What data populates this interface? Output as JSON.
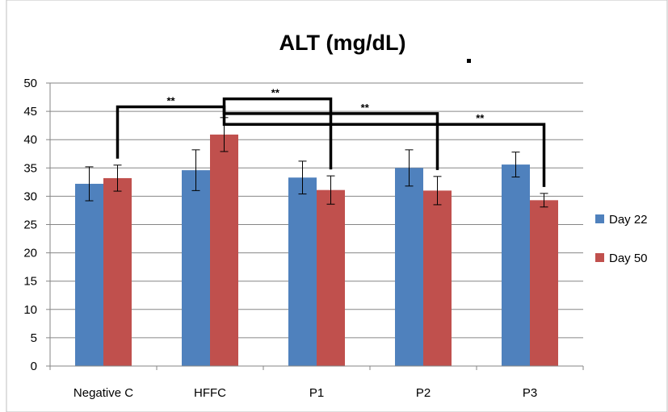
{
  "chart_data": {
    "type": "bar",
    "title": "ALT (mg/dL)",
    "xlabel": "",
    "ylabel": "",
    "categories": [
      "Negative C",
      "HFFC",
      "P1",
      "P2",
      "P3"
    ],
    "series": [
      {
        "name": "Day 22",
        "color": "#4f81bd",
        "values": [
          32.2,
          34.6,
          33.3,
          35.0,
          35.6
        ],
        "errors": [
          3.0,
          3.6,
          2.9,
          3.2,
          2.2
        ]
      },
      {
        "name": "Day 50",
        "color": "#c0504d",
        "values": [
          33.2,
          40.9,
          31.1,
          31.0,
          29.3
        ],
        "errors": [
          2.3,
          3.0,
          2.5,
          2.5,
          1.2
        ]
      }
    ],
    "ylim": [
      0,
      50
    ],
    "yticks": [
      0,
      5,
      10,
      15,
      20,
      25,
      30,
      35,
      40,
      45,
      50
    ],
    "grid": true,
    "legend_position": "right",
    "annotations": [
      {
        "label": "**",
        "from": [
          0,
          "Day 50"
        ],
        "to": [
          1,
          "Day 50"
        ],
        "y": 45.8
      },
      {
        "label": "**",
        "from": [
          1,
          "Day 50"
        ],
        "to": [
          2,
          "Day 50"
        ],
        "y": 47.2
      },
      {
        "label": "**",
        "from": [
          1,
          "Day 50"
        ],
        "to": [
          3,
          "Day 50"
        ],
        "y": 44.6
      },
      {
        "label": "**",
        "from": [
          1,
          "Day 50"
        ],
        "to": [
          4,
          "Day 50"
        ],
        "y": 42.7
      }
    ]
  }
}
